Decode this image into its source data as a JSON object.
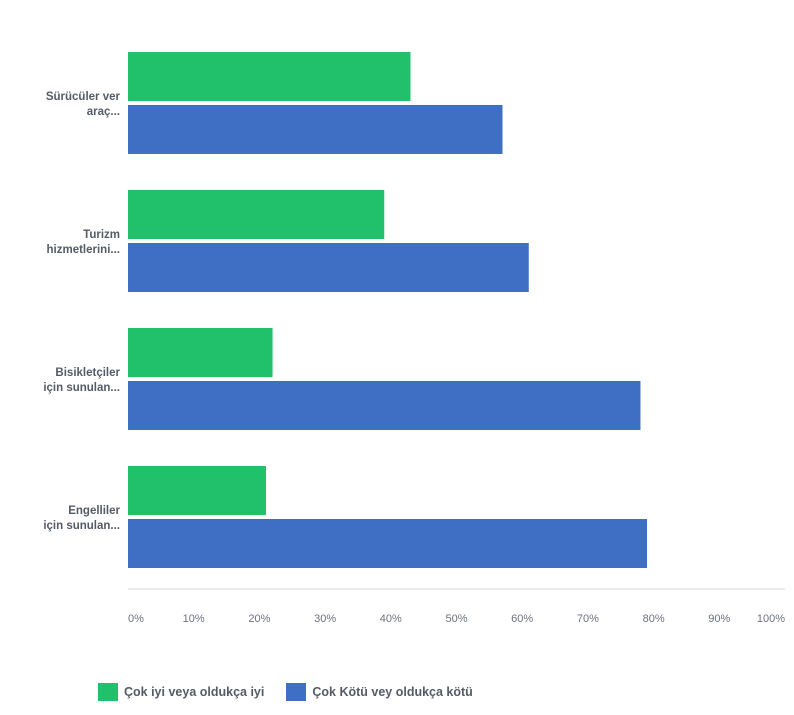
{
  "chart_data": {
    "type": "bar",
    "orientation": "horizontal",
    "categories": [
      [
        "Sürücüler ver",
        "araç..."
      ],
      [
        "Turizm",
        "hizmetlerini..."
      ],
      [
        "Bisikletçiler",
        "için sunulan..."
      ],
      [
        "Engelliler",
        "için sunulan..."
      ]
    ],
    "series": [
      {
        "name": "Çok iyi veya oldukça iyi",
        "color": "#21c16b",
        "values": [
          43,
          39,
          22,
          21
        ]
      },
      {
        "name": "Çok Kötü vey oldukça kötü",
        "color": "#3e6fc4",
        "values": [
          57,
          61,
          78,
          79
        ]
      }
    ],
    "x_ticks": [
      "0%",
      "10%",
      "20%",
      "30%",
      "40%",
      "50%",
      "60%",
      "70%",
      "80%",
      "90%",
      "100%"
    ],
    "xlim": [
      0,
      100
    ],
    "grid": false,
    "legend_position": "bottom-left"
  }
}
